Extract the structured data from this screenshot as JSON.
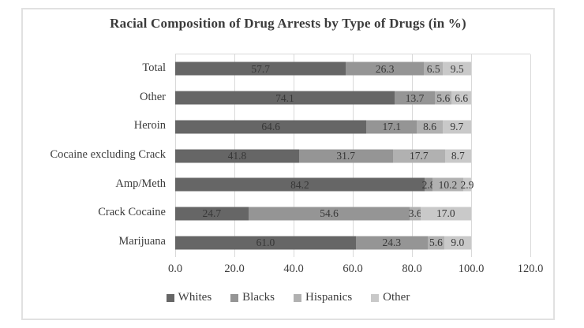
{
  "title": "Racial Composition of Drug Arrests by Type of Drugs (in %)",
  "chart_data": {
    "type": "bar",
    "orientation": "horizontal",
    "stacked": true,
    "title": "Racial Composition of Drug Arrests by Type of Drugs (in %)",
    "categories": [
      "Total",
      "Other",
      "Heroin",
      "Cocaine excluding Crack",
      "Amp/Meth",
      "Crack Cocaine",
      "Marijuana"
    ],
    "series": [
      {
        "name": "Whites",
        "color": "#666666",
        "values": [
          57.7,
          74.1,
          64.6,
          41.8,
          84.2,
          24.7,
          61.0
        ]
      },
      {
        "name": "Blacks",
        "color": "#959595",
        "values": [
          26.3,
          13.7,
          17.1,
          31.7,
          2.8,
          54.6,
          24.3
        ]
      },
      {
        "name": "Hispanics",
        "color": "#b1b1b1",
        "values": [
          6.5,
          5.6,
          8.6,
          17.7,
          10.2,
          3.6,
          5.6
        ]
      },
      {
        "name": "Other",
        "color": "#c9c9c9",
        "values": [
          9.5,
          6.6,
          9.7,
          8.7,
          2.9,
          17.0,
          9.0
        ]
      }
    ],
    "x_ticks": [
      "0.0",
      "20.0",
      "40.0",
      "60.0",
      "80.0",
      "100.0",
      "120.0"
    ],
    "xlim": [
      0,
      120
    ],
    "grid": "vertical",
    "gridline_color": "#d9d9d9",
    "legend_position": "bottom",
    "value_labels": "one_decimal_inside_segments"
  }
}
